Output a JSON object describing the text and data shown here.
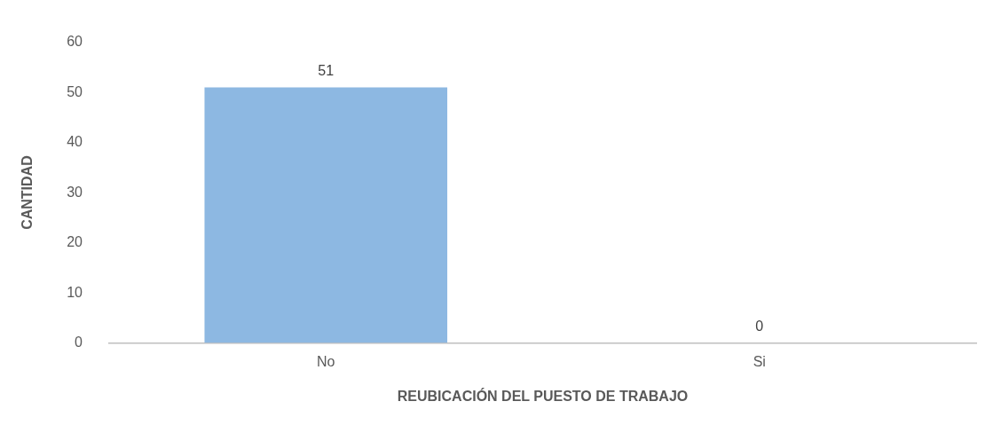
{
  "chart_data": {
    "type": "bar",
    "xlabel": "REUBICACIÓN DEL PUESTO DE TRABAJO",
    "ylabel": "CANTIDAD",
    "categories": [
      "No",
      "Si"
    ],
    "values": [
      51,
      0
    ],
    "color": "#8db8e2",
    "ylim": [
      0,
      60
    ],
    "yticks": [
      0,
      10,
      20,
      30,
      40,
      50,
      60
    ],
    "grid": false,
    "data_labels": true
  }
}
